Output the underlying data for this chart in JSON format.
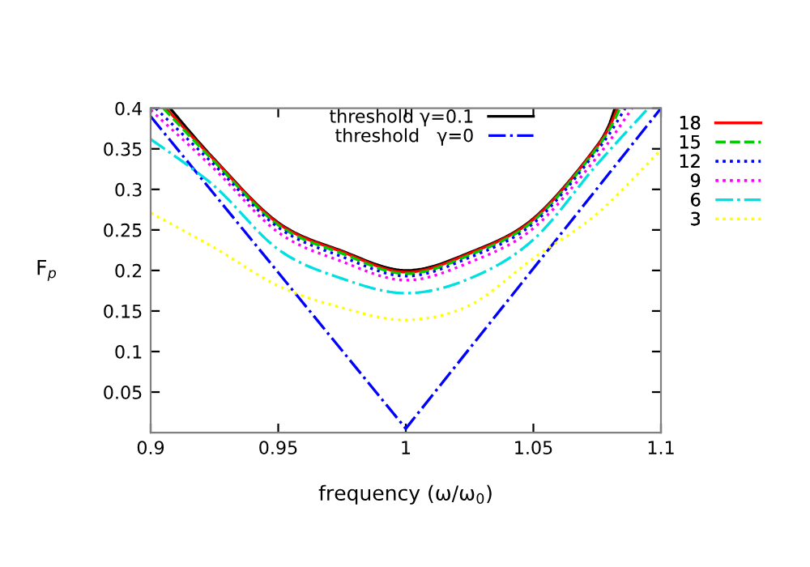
{
  "chart_data": {
    "type": "line",
    "xlabel": "frequency (ω/ω$_{0}$)",
    "ylabel": "F$_{p}$",
    "xlim": [
      0.9,
      1.1
    ],
    "ylim": [
      0,
      0.4
    ],
    "xticks": [
      0.9,
      0.95,
      {
        "value": 1.0,
        "label": "1"
      },
      1.05,
      1.1
    ],
    "yticks": [
      0.05,
      0.1,
      0.15,
      0.2,
      0.25,
      0.3,
      0.35,
      0.4
    ],
    "grid": false,
    "legend": "right",
    "marker": "none",
    "series": [
      {
        "name": "threshold γ=0.1",
        "color": "#000000",
        "line_style": "solid",
        "x": [
          0.9076,
          0.925,
          0.95,
          0.975,
          1.0,
          1.025,
          1.05,
          1.075,
          1.082
        ],
        "values": [
          0.4,
          0.337,
          0.259,
          0.224,
          0.2,
          0.222,
          0.264,
          0.354,
          0.4
        ]
      },
      {
        "name": "threshold   γ=0",
        "color": "#0000ff",
        "line_style": "dashdot",
        "x": [
          0.9,
          1.0,
          1.1
        ],
        "values": [
          0.39,
          0.005,
          0.4
        ]
      },
      {
        "name": "18",
        "color": "#ff0000",
        "line_style": "solid",
        "x": [
          0.906,
          0.925,
          0.95,
          0.975,
          1.0,
          1.025,
          1.05,
          1.075,
          1.083
        ],
        "values": [
          0.4,
          0.336,
          0.258,
          0.223,
          0.198,
          0.221,
          0.263,
          0.353,
          0.4
        ]
      },
      {
        "name": "15",
        "color": "#00cc00",
        "line_style": "dashed",
        "x": [
          0.905,
          0.925,
          0.95,
          0.975,
          1.0,
          1.025,
          1.05,
          1.075,
          1.084
        ],
        "values": [
          0.4,
          0.334,
          0.256,
          0.221,
          0.196,
          0.219,
          0.261,
          0.351,
          0.4
        ]
      },
      {
        "name": "12",
        "color": "#0000ff",
        "line_style": "dotted",
        "x": [
          0.902,
          0.925,
          0.95,
          0.975,
          1.0,
          1.025,
          1.05,
          1.075,
          1.086
        ],
        "values": [
          0.4,
          0.33,
          0.253,
          0.217,
          0.193,
          0.216,
          0.258,
          0.348,
          0.4
        ]
      },
      {
        "name": "9",
        "color": "#ff00ff",
        "line_style": "dotted",
        "x": [
          0.9,
          0.925,
          0.95,
          0.975,
          1.0,
          1.025,
          1.05,
          1.075,
          1.0887
        ],
        "values": [
          0.398,
          0.325,
          0.247,
          0.211,
          0.188,
          0.21,
          0.252,
          0.34,
          0.4
        ]
      },
      {
        "name": "6",
        "color": "#00e0e0",
        "line_style": "dashdot",
        "x": [
          0.9,
          0.925,
          0.95,
          0.975,
          1.0,
          1.025,
          1.05,
          1.075,
          1.095
        ],
        "values": [
          0.362,
          0.304,
          0.226,
          0.19,
          0.172,
          0.19,
          0.238,
          0.331,
          0.4
        ]
      },
      {
        "name": "3",
        "color": "#ffff00",
        "line_style": "dotted",
        "x": [
          0.9,
          0.925,
          0.95,
          0.975,
          1.0,
          1.025,
          1.05,
          1.075,
          1.1
        ],
        "values": [
          0.271,
          0.228,
          0.181,
          0.154,
          0.139,
          0.157,
          0.215,
          0.27,
          0.349
        ]
      }
    ]
  }
}
